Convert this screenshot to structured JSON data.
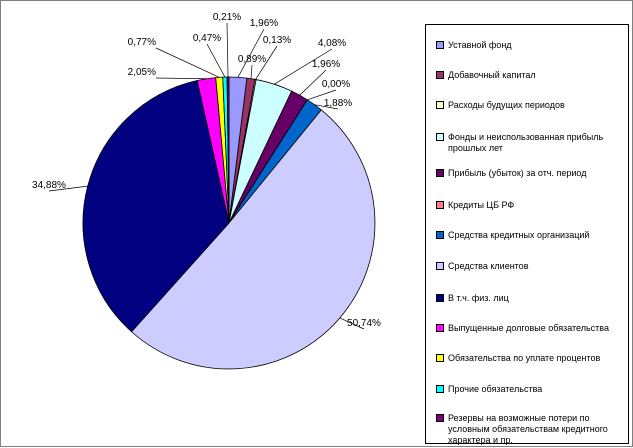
{
  "chart_data": {
    "type": "pie",
    "title": "",
    "slices": [
      {
        "label": "Уставной фонд",
        "value": 1.96,
        "value_label": "1,96%",
        "color": "#9999FF"
      },
      {
        "label": "Добавочный капитал",
        "value": 0.89,
        "value_label": "0,89%",
        "color": "#993366"
      },
      {
        "label": "Расходы будущих периодов",
        "value": 0.13,
        "value_label": "0,13%",
        "color": "#FFFFCC"
      },
      {
        "label": "Фонды и неиспользованная прибыль прошлых лет",
        "value": 4.08,
        "value_label": "4,08%",
        "color": "#CCFFFF"
      },
      {
        "label": "Прибыль (убыток) за отч. период",
        "value": 1.96,
        "value_label": "1,96%",
        "color": "#660066"
      },
      {
        "label": "Кредиты ЦБ РФ",
        "value": 0.0,
        "value_label": "0,00%",
        "color": "#FF8080"
      },
      {
        "label": "Средства кредитных организаций",
        "value": 1.88,
        "value_label": "1,88%",
        "color": "#0066CC"
      },
      {
        "label": "Средства клиентов",
        "value": 50.74,
        "value_label": "50,74%",
        "color": "#CCCCFF"
      },
      {
        "label": "В т.ч. физ. лиц",
        "value": 34.88,
        "value_label": "34,88%",
        "color": "#000080"
      },
      {
        "label": "Выпущенные долговые обязательства",
        "value": 2.05,
        "value_label": "2,05%",
        "color": "#FF00FF"
      },
      {
        "label": "Обязательства по уплате процентов",
        "value": 0.77,
        "value_label": "0,77%",
        "color": "#FFFF00"
      },
      {
        "label": "Прочие обязательства",
        "value": 0.47,
        "value_label": "0,47%",
        "color": "#00FFFF"
      },
      {
        "label": "Резервы на возможные потери по условным обязательствам кредитного характера и пр.",
        "value": 0.21,
        "value_label": "0,21%",
        "color": "#800080"
      }
    ],
    "legend_position": "right"
  }
}
